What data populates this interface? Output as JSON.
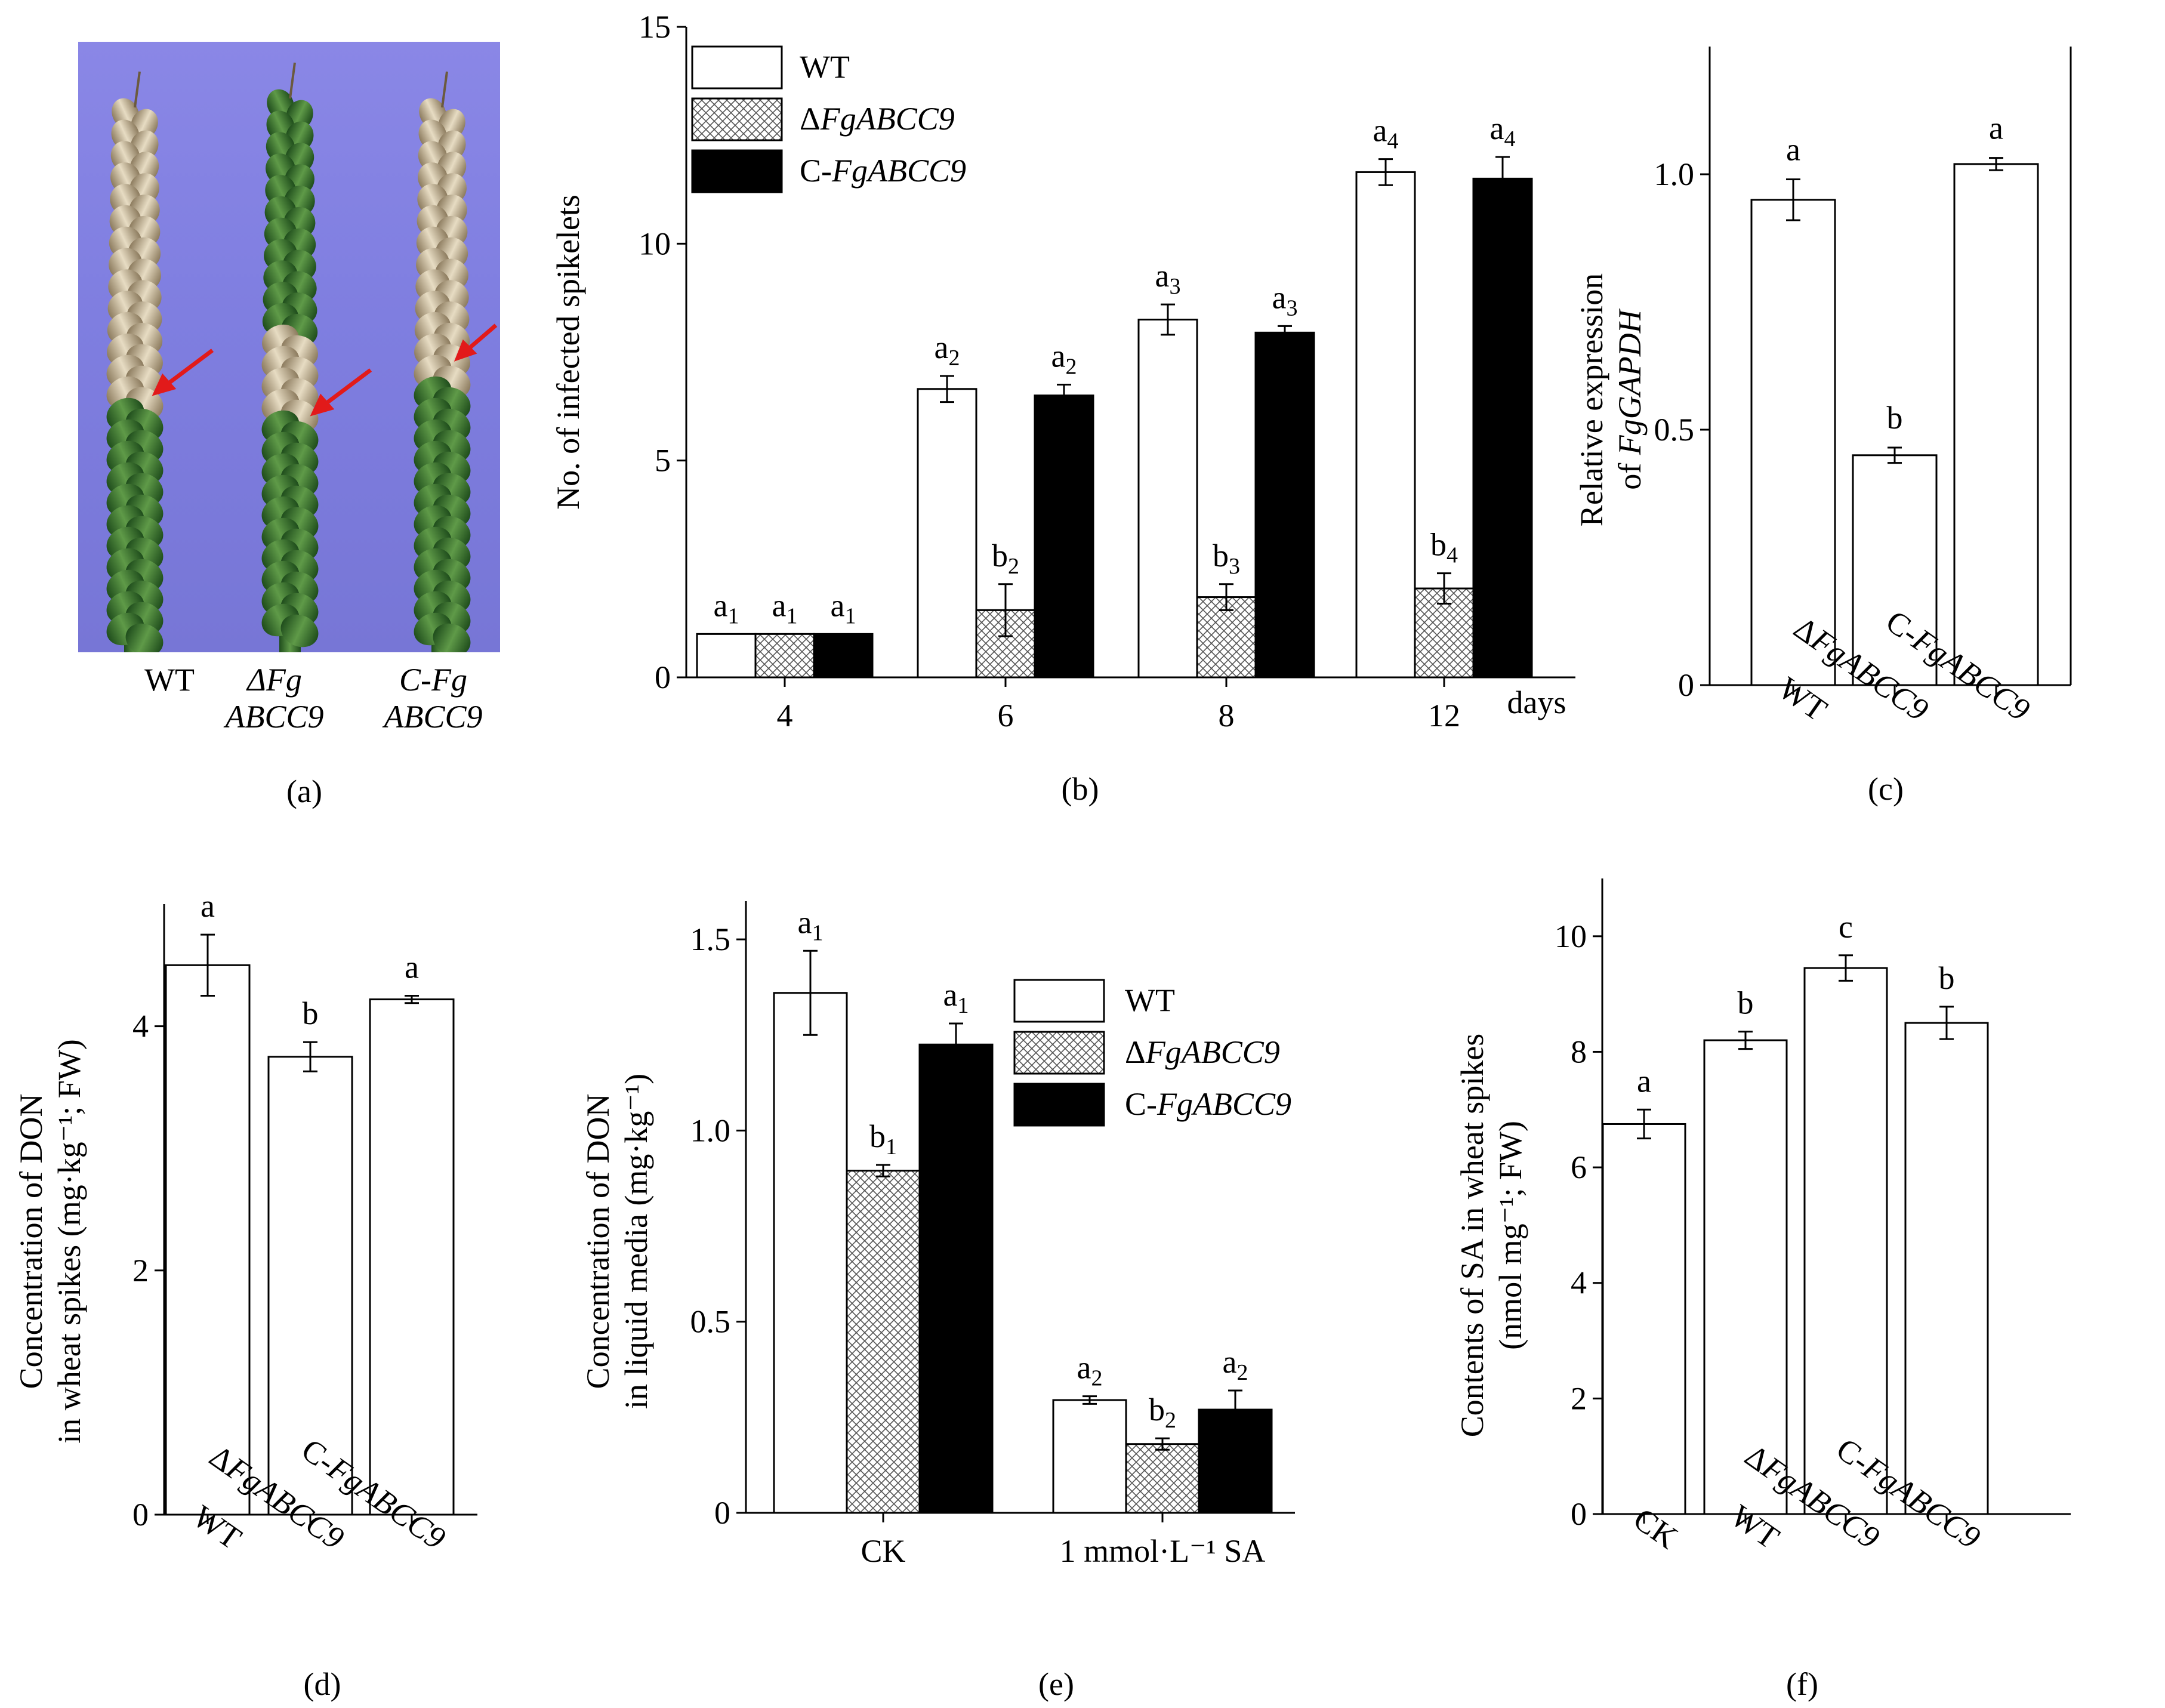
{
  "photo": {
    "labels": [
      {
        "line1": "WT",
        "line2": ""
      },
      {
        "line1": "ΔFg",
        "line2": "ABCC9"
      },
      {
        "line1": "C-Fg",
        "line2": "ABCC9"
      }
    ],
    "panel": "(a)"
  },
  "chart_data": [
    {
      "type": "bar",
      "panel": "(b)",
      "ylabel": "No. of infected spikelets",
      "xlabel": "days",
      "ylim": [
        0,
        15
      ],
      "yticks": [
        0,
        5,
        10,
        15
      ],
      "categories": [
        "4",
        "6",
        "8",
        "12"
      ],
      "series": [
        {
          "name": "WT",
          "values": [
            1.0,
            6.65,
            8.25,
            11.65
          ],
          "errors": [
            0.0,
            0.3,
            0.35,
            0.3
          ],
          "letters": [
            "a1",
            "a2",
            "a3",
            "a4"
          ]
        },
        {
          "name": "ΔFgABCC9",
          "values": [
            1.0,
            1.55,
            1.85,
            2.05
          ],
          "errors": [
            0.0,
            0.6,
            0.3,
            0.35
          ],
          "letters": [
            "a1",
            "b2",
            "b3",
            "b4"
          ]
        },
        {
          "name": "C-FgABCC9",
          "values": [
            1.0,
            6.5,
            7.95,
            11.5
          ],
          "errors": [
            0.0,
            0.25,
            0.15,
            0.5
          ],
          "letters": [
            "a1",
            "a2",
            "a3",
            "a4"
          ]
        }
      ],
      "legend": [
        "WT",
        "ΔFgABCC9",
        "C-FgABCC9"
      ]
    },
    {
      "type": "bar",
      "panel": "(c)",
      "ylabel_line1": "Relative expression",
      "ylabel_line2": "of FgGAPDH",
      "ylim": [
        0,
        1.25
      ],
      "yticks": [
        "0",
        "0.5",
        "1.0"
      ],
      "categories": [
        "WT",
        "ΔFgABCC9",
        "C-FgABCC9"
      ],
      "values": [
        0.95,
        0.45,
        1.02
      ],
      "errors": [
        0.04,
        0.015,
        0.012
      ],
      "letters": [
        "a",
        "b",
        "a"
      ]
    },
    {
      "type": "bar",
      "panel": "(d)",
      "ylabel_line1": "Concentration of DON",
      "ylabel_line2": "in wheat spikes (mg·kg⁻¹; FW)",
      "ylim": [
        0,
        5
      ],
      "yticks": [
        "0",
        "2",
        "4"
      ],
      "categories": [
        "WT",
        "ΔFgABCC9",
        "C-FgABCC9"
      ],
      "values": [
        4.5,
        3.75,
        4.22
      ],
      "errors": [
        0.25,
        0.12,
        0.03
      ],
      "letters": [
        "a",
        "b",
        "a"
      ]
    },
    {
      "type": "bar",
      "panel": "(e)",
      "ylabel_line1": "Concentration of DON",
      "ylabel_line2": "in liquid media (mg·kg⁻¹)",
      "ylim": [
        0,
        1.6
      ],
      "yticks": [
        "0",
        "0.5",
        "1.0",
        "1.5"
      ],
      "categories": [
        "CK",
        "1 mmol·L⁻¹ SA"
      ],
      "series": [
        {
          "name": "WT",
          "values": [
            1.36,
            0.295
          ],
          "errors": [
            0.11,
            0.01
          ],
          "letters": [
            "a1",
            "a2"
          ]
        },
        {
          "name": "ΔFgABCC9",
          "values": [
            0.895,
            0.18
          ],
          "errors": [
            0.015,
            0.015
          ],
          "letters": [
            "b1",
            "b2"
          ]
        },
        {
          "name": "C-FgABCC9",
          "values": [
            1.225,
            0.27
          ],
          "errors": [
            0.055,
            0.05
          ],
          "letters": [
            "a1",
            "a2"
          ]
        }
      ],
      "legend": [
        "WT",
        "ΔFgABCC9",
        "C-FgABCC9"
      ]
    },
    {
      "type": "bar",
      "panel": "(f)",
      "ylabel_line1": "Contents of SA in wheat spikes",
      "ylabel_line2": "(nmol mg⁻¹; FW)",
      "ylim": [
        0,
        11
      ],
      "yticks": [
        "0",
        "2",
        "4",
        "6",
        "8",
        "10"
      ],
      "categories": [
        "CK",
        "WT",
        "ΔFgABCC9",
        "C-FgABCC9"
      ],
      "values": [
        6.75,
        8.2,
        9.45,
        8.5
      ],
      "errors": [
        0.25,
        0.15,
        0.22,
        0.28
      ],
      "letters": [
        "a",
        "b",
        "c",
        "b"
      ]
    }
  ]
}
